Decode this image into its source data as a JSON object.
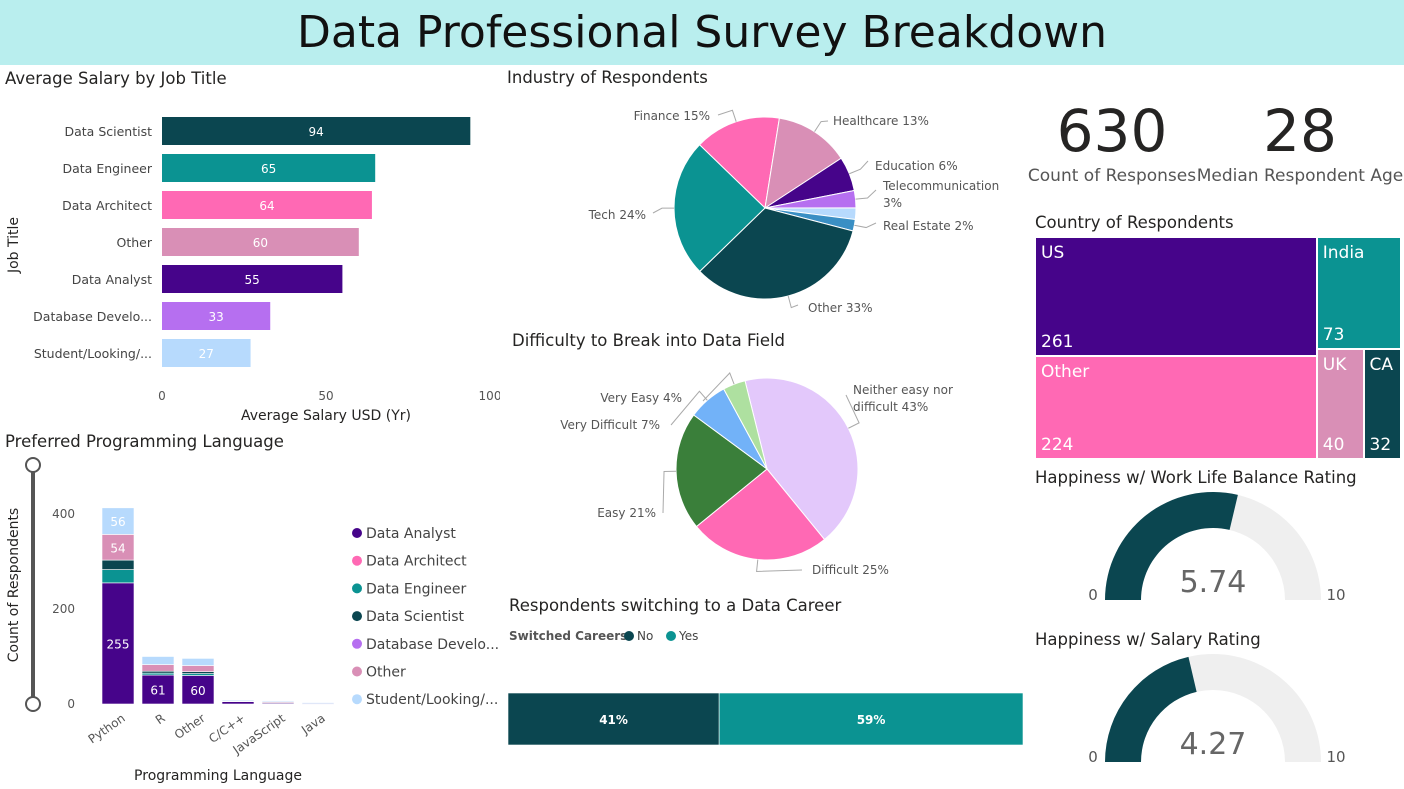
{
  "page": {
    "title": "Data Professional Survey Breakdown"
  },
  "kpis": [
    {
      "value": "630",
      "label": "Count of Responses"
    },
    {
      "value": "28",
      "label": "Median Respondent Age"
    }
  ],
  "chart_data": [
    {
      "id": "salary",
      "type": "bar",
      "orientation": "horizontal",
      "title": "Average Salary by Job Title",
      "xlabel": "Average Salary USD (Yr)",
      "ylabel": "Job Title",
      "xlim": [
        0,
        100
      ],
      "xticks": [
        "0",
        "50",
        "100"
      ],
      "categories": [
        "Data Scientist",
        "Data Engineer",
        "Data Architect",
        "Other",
        "Data Analyst",
        "Database Develo...",
        "Student/Looking/..."
      ],
      "values": [
        94,
        65,
        64,
        60,
        55,
        33,
        27
      ],
      "colors": [
        "#0b4650",
        "#0b9392",
        "#ff69b4",
        "#d98fb6",
        "#46048a",
        "#b66ff0",
        "#b7dafd"
      ]
    },
    {
      "id": "industry",
      "type": "pie",
      "title": "Industry of Respondents",
      "slices": [
        {
          "label": "Finance 15%",
          "value": 15,
          "color": "#ff69b4"
        },
        {
          "label": "Healthcare 13%",
          "value": 13,
          "color": "#d98fb6"
        },
        {
          "label": "Education 6%",
          "value": 6,
          "color": "#46048a"
        },
        {
          "label": "Telecommunication 3%",
          "value": 3,
          "color": "#b66ff0"
        },
        {
          "label": "",
          "value": 2,
          "color": "#b7dafd"
        },
        {
          "label": "Real Estate 2%",
          "value": 2,
          "color": "#3a8fc4"
        },
        {
          "label": "Other 33%",
          "value": 33,
          "color": "#0b4650"
        },
        {
          "label": "Tech 24%",
          "value": 24,
          "color": "#0b9392"
        }
      ]
    },
    {
      "id": "difficulty",
      "type": "pie",
      "title": "Difficulty to Break into Data Field",
      "slices": [
        {
          "label": "Neither easy nor difficult 43%",
          "value": 43,
          "color": "#e3c8fb"
        },
        {
          "label": "Difficult 25%",
          "value": 25,
          "color": "#ff69b4"
        },
        {
          "label": "Easy 21%",
          "value": 21,
          "color": "#3a7f3a"
        },
        {
          "label": "Very Difficult 7%",
          "value": 7,
          "color": "#72b2f8"
        },
        {
          "label": "Very Easy 4%",
          "value": 4,
          "color": "#aee0a0"
        }
      ]
    },
    {
      "id": "language",
      "type": "bar",
      "stacked": true,
      "title": "Preferred Programming Language",
      "xlabel": "Programming Language",
      "ylabel": "Count of Respondents",
      "ylim": [
        0,
        420
      ],
      "yticks": [
        "0",
        "200",
        "400"
      ],
      "categories": [
        "Python",
        "R",
        "Other",
        "C/C++",
        "JavaScript",
        "Java"
      ],
      "series": [
        {
          "name": "Data Analyst",
          "color": "#46048a",
          "values": [
            255,
            61,
            60,
            5,
            3,
            2
          ],
          "labels": [
            "255",
            "61",
            "60",
            "",
            "",
            ""
          ]
        },
        {
          "name": "Data Architect",
          "color": "#ff69b4",
          "values": [
            0,
            0,
            0,
            0,
            0,
            0
          ],
          "labels": [
            "",
            "",
            "",
            "",
            "",
            ""
          ]
        },
        {
          "name": "Data Engineer",
          "color": "#0b9392",
          "values": [
            28,
            4,
            4,
            0,
            1,
            0
          ],
          "labels": [
            "",
            "",
            "",
            "",
            "",
            ""
          ]
        },
        {
          "name": "Data Scientist",
          "color": "#0b4650",
          "values": [
            20,
            4,
            4,
            0,
            0,
            0
          ],
          "labels": [
            "",
            "",
            "",
            "",
            "",
            ""
          ]
        },
        {
          "name": "Database Develo...",
          "color": "#b66ff0",
          "values": [
            0,
            0,
            0,
            0,
            0,
            0
          ],
          "labels": [
            "",
            "",
            "",
            "",
            "",
            ""
          ]
        },
        {
          "name": "Other",
          "color": "#d98fb6",
          "values": [
            54,
            14,
            13,
            2,
            1,
            0
          ],
          "labels": [
            "54",
            "",
            "",
            "",
            "",
            ""
          ]
        },
        {
          "name": "Student/Looking/...",
          "color": "#b7dafd",
          "values": [
            56,
            17,
            15,
            1,
            2,
            1
          ],
          "labels": [
            "56",
            "",
            "",
            "",
            "",
            ""
          ]
        }
      ]
    },
    {
      "id": "switch",
      "type": "bar",
      "stacked": true,
      "orientation": "horizontal",
      "title": "Respondents switching to a Data Career",
      "legend_title": "Switched Careers",
      "series": [
        {
          "name": "No",
          "value": 41,
          "label": "41%",
          "color": "#0b4650"
        },
        {
          "name": "Yes",
          "value": 59,
          "label": "59%",
          "color": "#0b9392"
        }
      ]
    },
    {
      "id": "country",
      "type": "treemap",
      "title": "Country of Respondents",
      "items": [
        {
          "name": "US",
          "value": 261,
          "color": "#46048a"
        },
        {
          "name": "India",
          "value": 73,
          "color": "#0b9392"
        },
        {
          "name": "Other",
          "value": 224,
          "color": "#ff69b4"
        },
        {
          "name": "UK",
          "value": 40,
          "color": "#d98fb6"
        },
        {
          "name": "CA",
          "value": 32,
          "color": "#0b4650"
        }
      ]
    },
    {
      "id": "gauge_wlb",
      "type": "gauge",
      "title": "Happiness w/ Work Life Balance Rating",
      "value": 5.74,
      "value_label": "5.74",
      "min": 0,
      "max": 10,
      "min_label": "0",
      "max_label": "10",
      "fill_color": "#0b4650",
      "track_color": "#efefef"
    },
    {
      "id": "gauge_salary",
      "type": "gauge",
      "title": "Happiness w/ Salary Rating",
      "value": 4.27,
      "value_label": "4.27",
      "min": 0,
      "max": 10,
      "min_label": "0",
      "max_label": "10",
      "fill_color": "#0b4650",
      "track_color": "#efefef"
    }
  ]
}
